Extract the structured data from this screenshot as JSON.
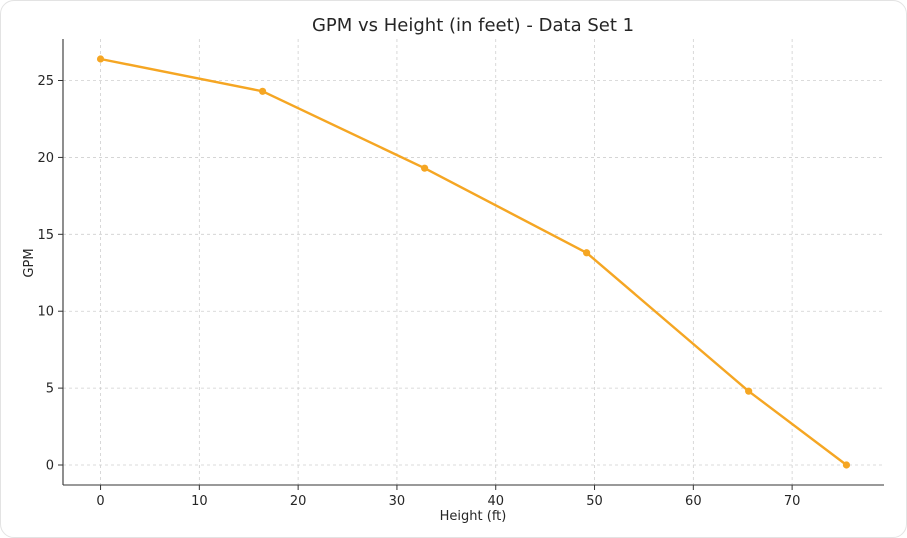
{
  "chart_data": {
    "type": "line",
    "title": "GPM vs Height (in feet) - Data Set 1",
    "xlabel": "Height (ft)",
    "ylabel": "GPM",
    "xlim": [
      -3.8,
      79.3
    ],
    "ylim": [
      -1.3,
      27.7
    ],
    "xticks": [
      0,
      10,
      20,
      30,
      40,
      50,
      60,
      70
    ],
    "yticks": [
      0,
      5,
      10,
      15,
      20,
      25
    ],
    "grid": true,
    "series": [
      {
        "color": "#f5a623",
        "points": [
          {
            "x": 0,
            "y": 26.4
          },
          {
            "x": 16.4,
            "y": 24.3
          },
          {
            "x": 32.8,
            "y": 19.3
          },
          {
            "x": 49.2,
            "y": 13.8
          },
          {
            "x": 65.6,
            "y": 4.8
          },
          {
            "x": 75.5,
            "y": 0
          }
        ]
      }
    ]
  }
}
